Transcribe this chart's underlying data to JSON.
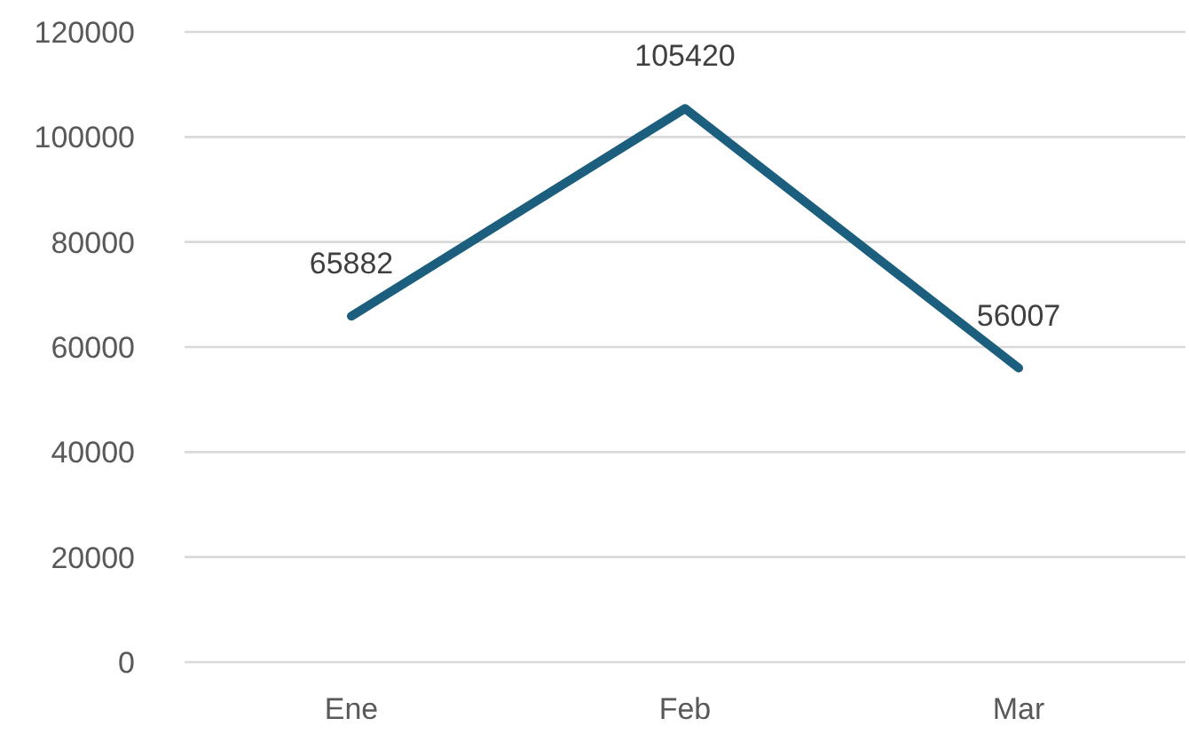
{
  "chart_data": {
    "type": "line",
    "categories": [
      "Ene",
      "Feb",
      "Mar"
    ],
    "series": [
      {
        "color": "#1b5e7d",
        "values": [
          65882,
          105420,
          56007
        ]
      }
    ],
    "ylim": [
      0,
      120000
    ],
    "yticks": [
      0,
      20000,
      40000,
      60000,
      80000,
      100000,
      120000
    ],
    "grid": "y",
    "legend": false,
    "marker": "none",
    "line_style": "solid",
    "data_labels": true
  }
}
